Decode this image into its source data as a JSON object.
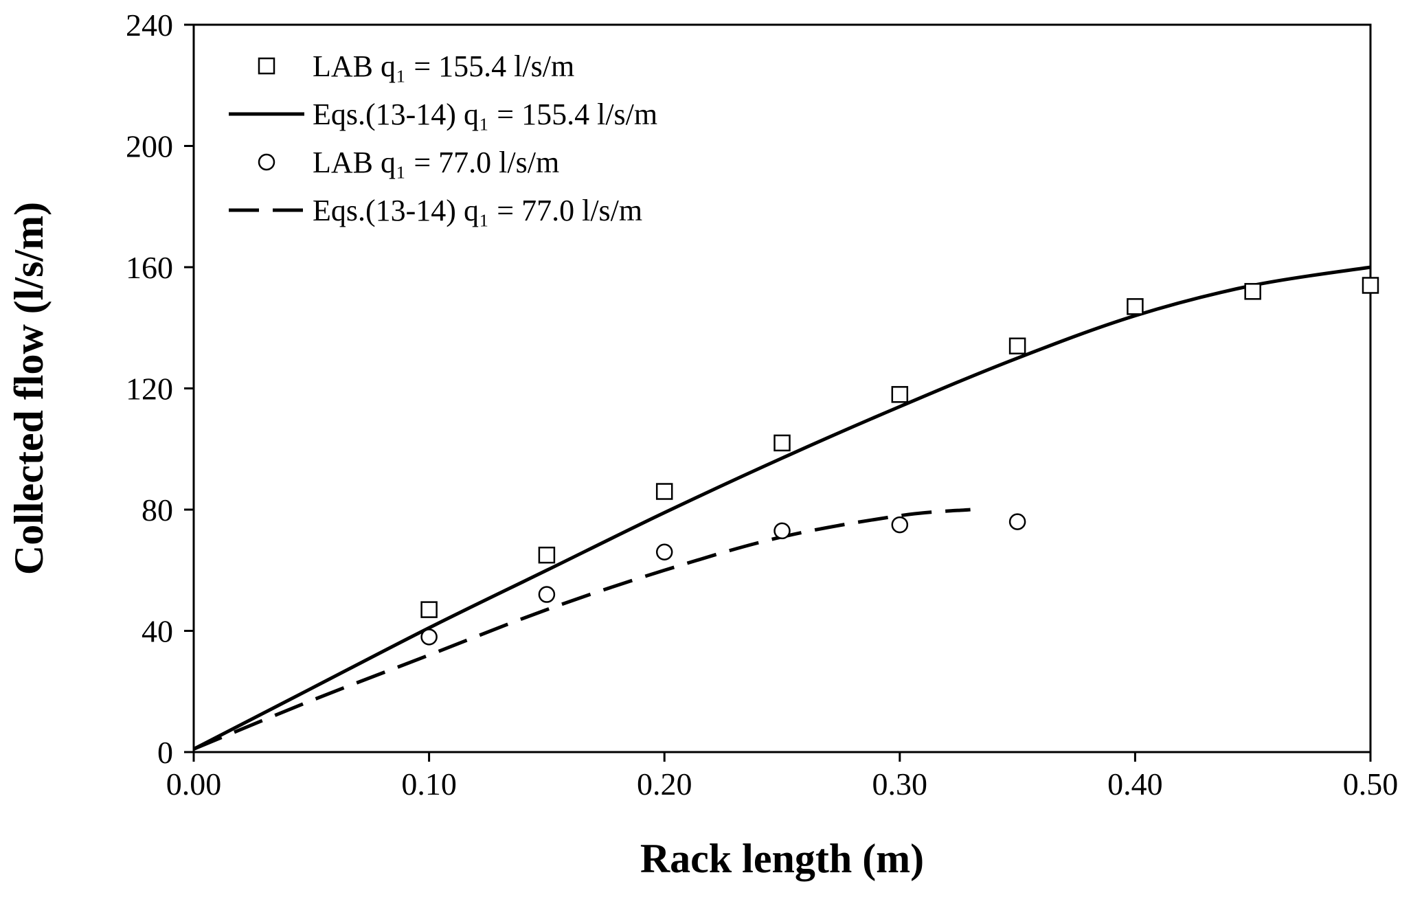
{
  "chart_data": {
    "type": "scatter",
    "title": "",
    "xlabel": "Rack length (m)",
    "ylabel": "Collected flow (l/s/m)",
    "xlim": [
      0,
      0.5
    ],
    "ylim": [
      0,
      240
    ],
    "xticks": [
      0,
      0.1,
      0.2,
      0.3,
      0.4,
      0.5
    ],
    "xtick_labels": [
      "0.00",
      "0.10",
      "0.20",
      "0.30",
      "0.40",
      "0.50"
    ],
    "yticks": [
      0,
      40,
      80,
      120,
      160,
      200,
      240
    ],
    "ytick_labels": [
      "0",
      "40",
      "80",
      "120",
      "160",
      "200",
      "240"
    ],
    "grid": false,
    "legend_position": "top-left",
    "series": [
      {
        "name": "LAB q₁ = 155.4 l/s/m",
        "kind": "markers",
        "marker": "square",
        "x": [
          0.1,
          0.15,
          0.2,
          0.25,
          0.3,
          0.35,
          0.4,
          0.45,
          0.5
        ],
        "y": [
          47,
          65,
          86,
          102,
          118,
          134,
          147,
          152,
          154
        ]
      },
      {
        "name": "Eqs.(13-14) q₁ = 155.4 l/s/m",
        "kind": "line",
        "dash": "solid",
        "x": [
          0.0,
          0.05,
          0.1,
          0.15,
          0.2,
          0.25,
          0.3,
          0.35,
          0.4,
          0.45,
          0.5
        ],
        "y": [
          1,
          21,
          41,
          60,
          79,
          97,
          114,
          130,
          144,
          154,
          160
        ]
      },
      {
        "name": "LAB q₁ = 77.0 l/s/m",
        "kind": "markers",
        "marker": "circle",
        "x": [
          0.1,
          0.15,
          0.2,
          0.25,
          0.3,
          0.35
        ],
        "y": [
          38,
          52,
          66,
          73,
          75,
          76
        ]
      },
      {
        "name": "Eqs.(13-14) q₁ = 77.0 l/s/m",
        "kind": "line",
        "dash": "dashed",
        "x": [
          0.0,
          0.05,
          0.1,
          0.15,
          0.2,
          0.25,
          0.3,
          0.33
        ],
        "y": [
          1,
          17,
          32,
          47,
          60,
          71,
          78,
          80
        ]
      }
    ]
  }
}
